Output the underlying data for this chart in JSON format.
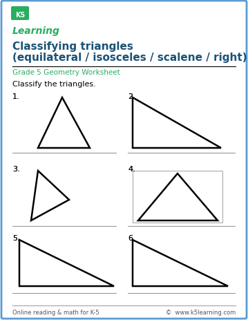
{
  "title_line1": "Classifying triangles",
  "title_line2": "(equilateral / isosceles / scalene / right)",
  "subtitle": "Grade 5 Geometry Worksheet",
  "instruction": "Classify the triangles.",
  "footer_left": "Online reading & math for K-5",
  "footer_right": "©  www.k5learning.com",
  "title_color": "#1a5276",
  "subtitle_color": "#27ae60",
  "border_color": "#5b9bd5",
  "background": "#ffffff",
  "line_color": "#999999",
  "text_color": "#000000"
}
